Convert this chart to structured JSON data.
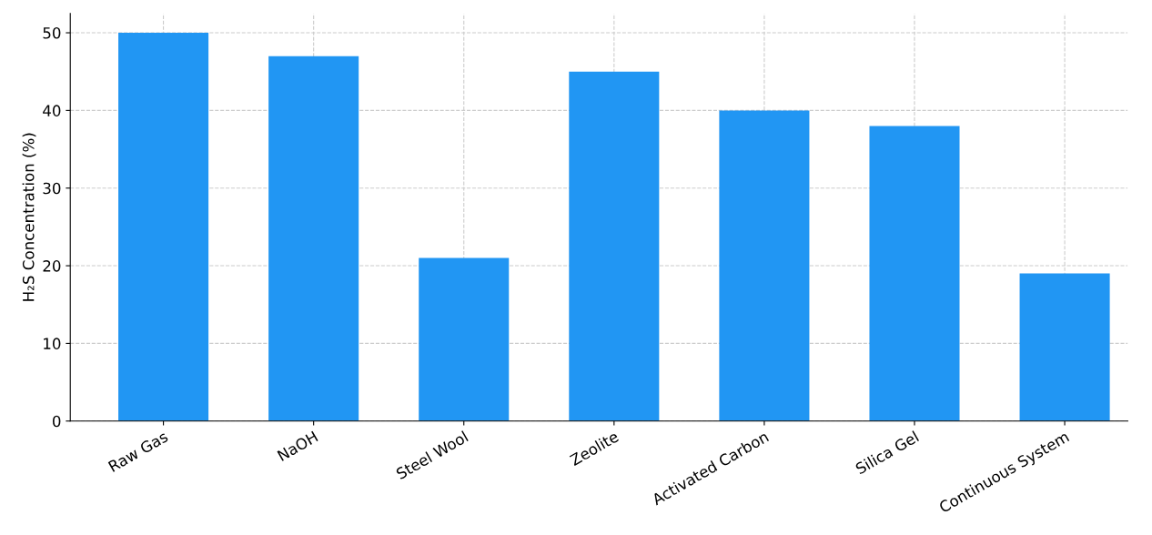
{
  "chart_data": {
    "type": "bar",
    "ylabel": "H₂S Concentration (%)",
    "categories": [
      "Raw Gas",
      "NaOH",
      "Steel Wool",
      "Zeolite",
      "Activated Carbon",
      "Silica Gel",
      "Continuous System"
    ],
    "values": [
      50,
      47,
      21,
      45,
      40,
      38,
      19
    ],
    "color": "#2196f3",
    "ylim": [
      0,
      52.5
    ],
    "yticks": [
      0,
      10,
      20,
      30,
      40,
      50
    ],
    "grid": true
  }
}
